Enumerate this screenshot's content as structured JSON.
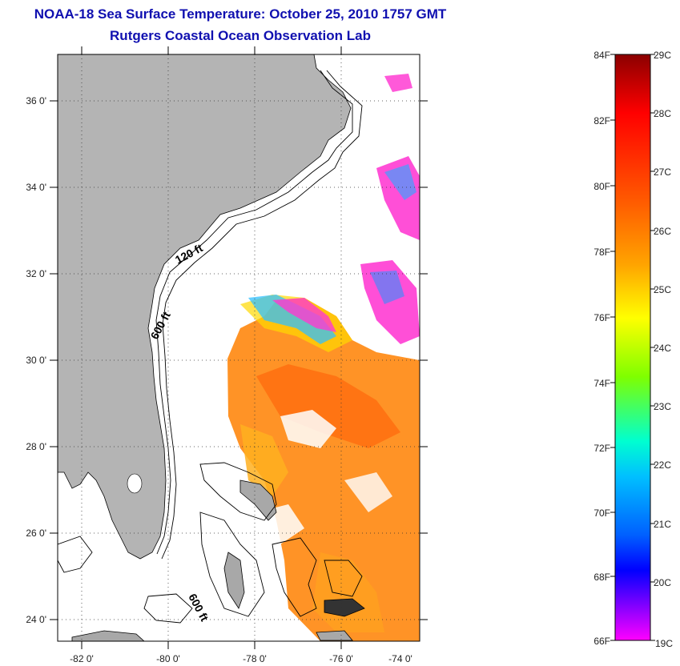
{
  "title_line1": "NOAA-18 Sea Surface Temperature:  October 25, 2010 1757 GMT",
  "title_line2": "Rutgers Coastal Ocean Observation Lab",
  "map": {
    "lat_labels": [
      "36 0'",
      "34 0'",
      "32 0'",
      "30 0'",
      "28 0'",
      "26 0'",
      "24 0'"
    ],
    "lon_labels": [
      "-82 0'",
      "-80 0'",
      "-78 0'",
      "-76 0'",
      "-74 0'"
    ],
    "contour_labels": [
      "120 ft",
      "600 ft",
      "600 ft"
    ],
    "land_color": "#b4b4b4",
    "ocean_color": "#ffffff"
  },
  "colorbar": {
    "fahrenheit_labels": [
      "84F",
      "82F",
      "80F",
      "78F",
      "76F",
      "74F",
      "72F",
      "70F",
      "68F",
      "66F"
    ],
    "celsius_labels": [
      "29C",
      "28C",
      "27C",
      "26C",
      "25C",
      "24C",
      "23C",
      "22C",
      "21C",
      "20C",
      "19C"
    ],
    "colors": [
      "#8b0000",
      "#ff0000",
      "#ff6a00",
      "#ffa500",
      "#ffff00",
      "#7fff00",
      "#00ffff",
      "#0080ff",
      "#0000ff",
      "#8000ff",
      "#ff00ff"
    ]
  }
}
